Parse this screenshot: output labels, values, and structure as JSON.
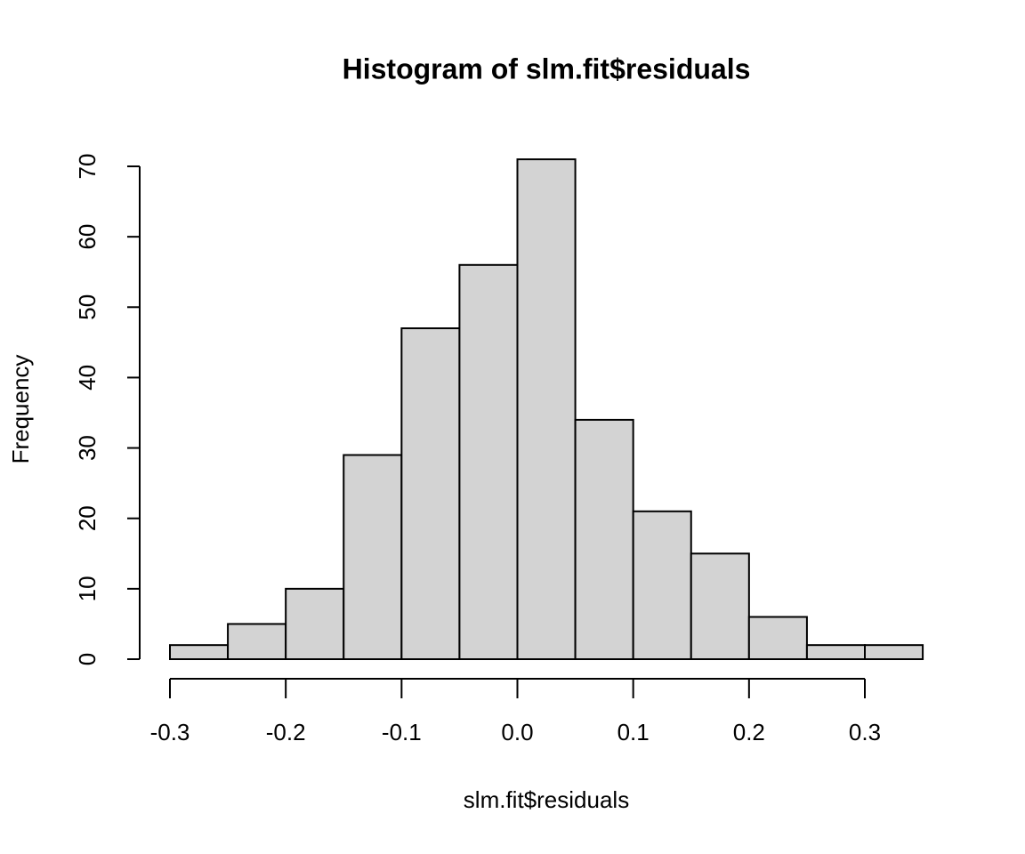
{
  "chart_data": {
    "type": "histogram",
    "title": "Histogram of slm.fit$residuals",
    "x_label": "slm.fit$residuals",
    "y_label": "Frequency",
    "bins": [
      -0.3,
      -0.25,
      -0.2,
      -0.15,
      -0.1,
      -0.05,
      0,
      0.05,
      0.1,
      0.15,
      0.2,
      0.25,
      0.3,
      0.35
    ],
    "values": [
      2,
      5,
      10,
      29,
      47,
      56,
      71,
      34,
      21,
      15,
      6,
      2,
      2
    ],
    "color": "#d3d3d3",
    "xlim": [
      -0.3,
      0.3
    ],
    "xticks": [
      -0.3,
      -0.2,
      -0.1,
      {
        "value": 0,
        "label": "0.0"
      },
      0.1,
      0.2,
      0.3
    ],
    "ylim": [
      0,
      70
    ],
    "yticks": [
      0,
      10,
      20,
      30,
      40,
      50,
      60,
      70
    ]
  }
}
